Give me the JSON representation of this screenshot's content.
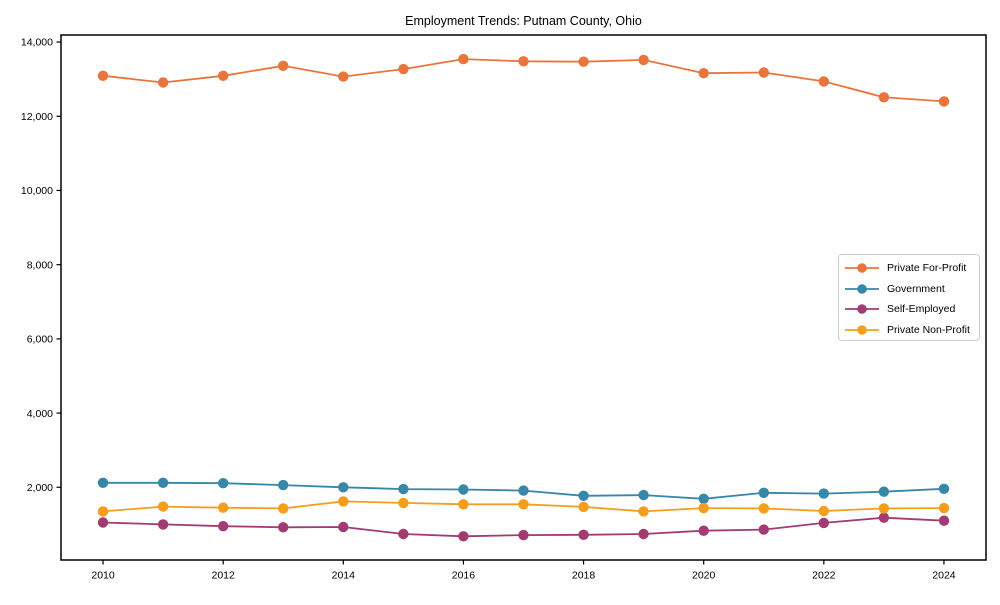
{
  "chart_data": {
    "type": "line",
    "title": "Employment Trends: Putnam County, Ohio",
    "xlabel": "",
    "ylabel": "",
    "x": [
      2010,
      2011,
      2012,
      2013,
      2014,
      2015,
      2016,
      2017,
      2018,
      2019,
      2020,
      2021,
      2022,
      2023,
      2024
    ],
    "series": [
      {
        "name": "Private For-Profit",
        "color": "#E8763C",
        "marker": "circle",
        "values": [
          13090,
          12910,
          13090,
          13360,
          13070,
          13270,
          13540,
          13480,
          13470,
          13520,
          13160,
          13180,
          12940,
          12510,
          12400
        ]
      },
      {
        "name": "Government",
        "color": "#3787A8",
        "marker": "circle",
        "values": [
          2120,
          2120,
          2110,
          2060,
          2000,
          1950,
          1940,
          1910,
          1770,
          1790,
          1690,
          1850,
          1830,
          1880,
          1960
        ]
      },
      {
        "name": "Self-Employed",
        "color": "#A23B72",
        "marker": "circle",
        "values": [
          1050,
          1000,
          950,
          920,
          930,
          740,
          680,
          710,
          720,
          740,
          830,
          860,
          1040,
          1180,
          1100
        ]
      },
      {
        "name": "Private Non-Profit",
        "color": "#F59E1B",
        "marker": "circle",
        "values": [
          1350,
          1480,
          1450,
          1430,
          1620,
          1580,
          1540,
          1540,
          1470,
          1350,
          1440,
          1430,
          1360,
          1430,
          1440
        ]
      }
    ],
    "x_ticks": [
      2010,
      2012,
      2014,
      2016,
      2018,
      2020,
      2022,
      2024
    ],
    "x_tick_labels": [
      "2010",
      "2012",
      "2014",
      "2016",
      "2018",
      "2020",
      "2022",
      "2024"
    ],
    "y_ticks": [
      2000,
      4000,
      6000,
      8000,
      10000,
      12000,
      14000
    ],
    "y_tick_labels": [
      "2,000",
      "4,000",
      "6,000",
      "8,000",
      "10,000",
      "12,000",
      "14,000"
    ],
    "xlim": [
      2009.3,
      2024.7
    ],
    "ylim": [
      40,
      14190
    ],
    "grid": false,
    "legend_position": "center right",
    "axis_color": "#000000",
    "background_color": "#ffffff"
  }
}
